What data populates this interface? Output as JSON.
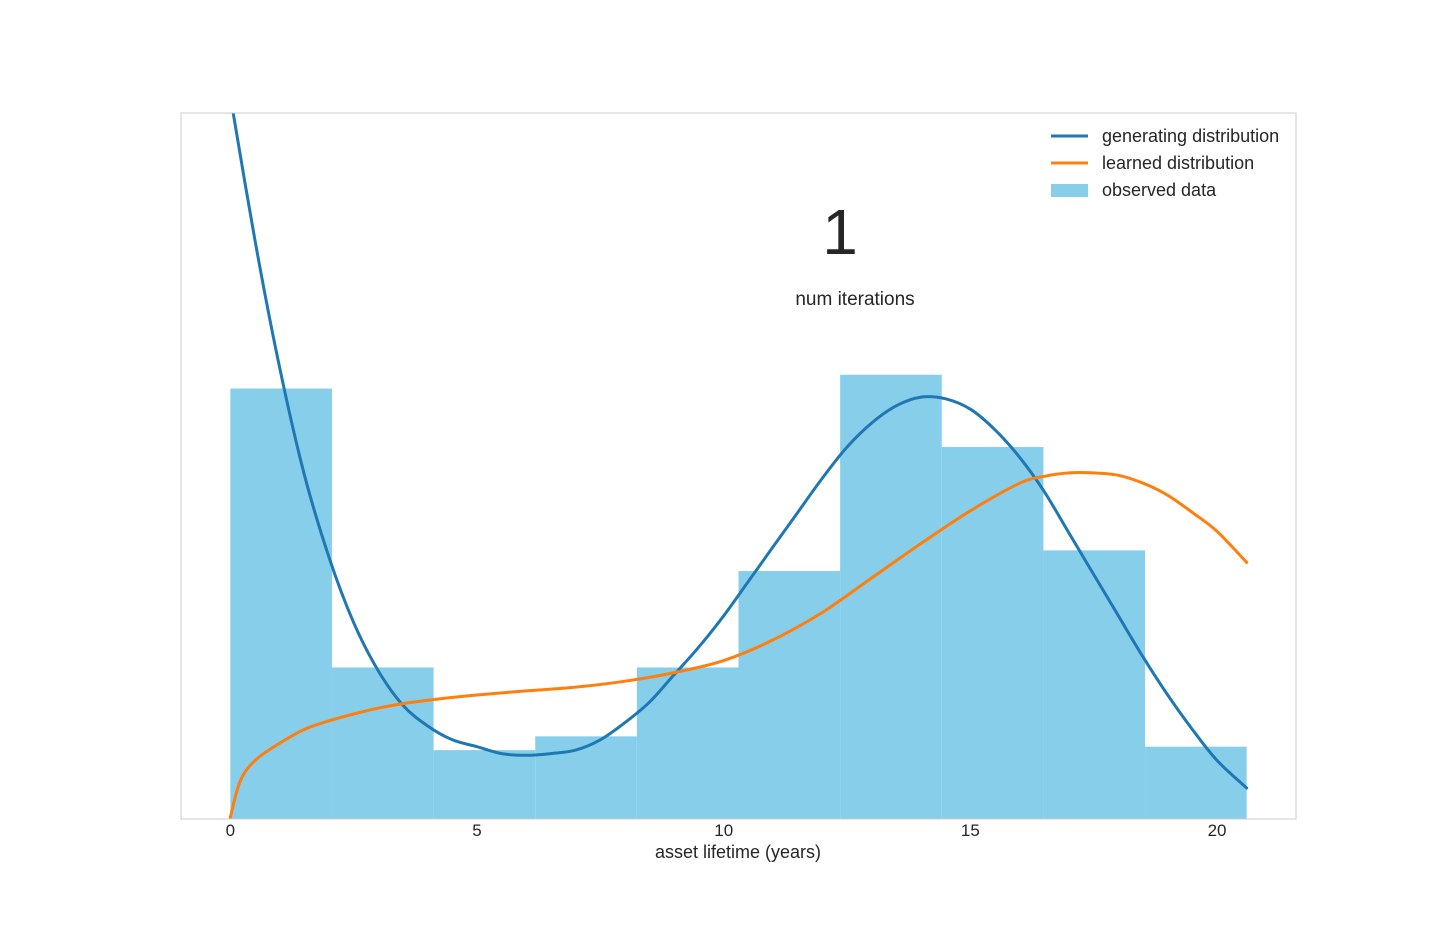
{
  "chart_data": {
    "type": "bar",
    "xlabel": "asset lifetime (years)",
    "ylabel": "",
    "xlim": [
      -1,
      21.6
    ],
    "ylim": [
      0,
      0.205
    ],
    "xticks": [
      0,
      5,
      10,
      15,
      20
    ],
    "ytick_labels_visible": false,
    "grid": false,
    "legend_position": "top-right",
    "annotation": {
      "value": "1",
      "caption": "num iterations"
    },
    "colors": {
      "generating": "#1f77b4",
      "learned": "#ff7f0e",
      "observed": "#87ceeb",
      "frame": "#cccccc"
    },
    "legend": [
      {
        "label": "generating distribution",
        "kind": "line",
        "series": "generating"
      },
      {
        "label": "learned distribution",
        "kind": "line",
        "series": "learned"
      },
      {
        "label": "observed data",
        "kind": "patch",
        "series": "observed"
      }
    ],
    "histogram": {
      "name": "observed data",
      "bin_edges": [
        0,
        2.06,
        4.12,
        6.18,
        8.24,
        10.3,
        12.36,
        14.42,
        16.48,
        18.54,
        20.6
      ],
      "values": [
        0.125,
        0.044,
        0.02,
        0.024,
        0.044,
        0.072,
        0.129,
        0.108,
        0.078,
        0.021
      ]
    },
    "series": [
      {
        "name": "generating distribution",
        "key": "generating",
        "x": [
          0,
          0.5,
          1,
          1.5,
          2,
          2.5,
          3,
          3.5,
          4,
          4.5,
          5,
          5.5,
          6,
          6.5,
          7,
          7.5,
          8,
          8.5,
          9,
          9.5,
          10,
          10.5,
          11,
          11.5,
          12,
          12.5,
          13,
          13.5,
          14,
          14.5,
          15,
          15.5,
          16,
          16.5,
          17,
          17.5,
          18,
          18.5,
          19,
          19.5,
          20,
          20.6
        ],
        "y": [
          0.21,
          0.168,
          0.131,
          0.1,
          0.076,
          0.057,
          0.043,
          0.033,
          0.027,
          0.023,
          0.021,
          0.019,
          0.0185,
          0.019,
          0.02,
          0.023,
          0.028,
          0.034,
          0.042,
          0.05,
          0.059,
          0.069,
          0.079,
          0.089,
          0.099,
          0.108,
          0.115,
          0.12,
          0.1225,
          0.122,
          0.119,
          0.113,
          0.105,
          0.095,
          0.083,
          0.071,
          0.059,
          0.047,
          0.036,
          0.026,
          0.017,
          0.009
        ]
      },
      {
        "name": "learned distribution",
        "key": "learned",
        "x": [
          0,
          0.2,
          0.5,
          1,
          1.5,
          2,
          2.5,
          3,
          3.5,
          4,
          4.5,
          5,
          6,
          7,
          8,
          9,
          10,
          11,
          12,
          13,
          14,
          15,
          16,
          16.5,
          17,
          17.5,
          18,
          18.5,
          19,
          19.5,
          20,
          20.6
        ],
        "y": [
          0.0005,
          0.011,
          0.017,
          0.022,
          0.026,
          0.0285,
          0.0305,
          0.0322,
          0.0335,
          0.0345,
          0.0353,
          0.036,
          0.0372,
          0.0383,
          0.04,
          0.0425,
          0.046,
          0.052,
          0.06,
          0.07,
          0.08,
          0.0895,
          0.0975,
          0.0995,
          0.1005,
          0.1005,
          0.0998,
          0.0975,
          0.094,
          0.089,
          0.0835,
          0.0745
        ]
      }
    ]
  }
}
